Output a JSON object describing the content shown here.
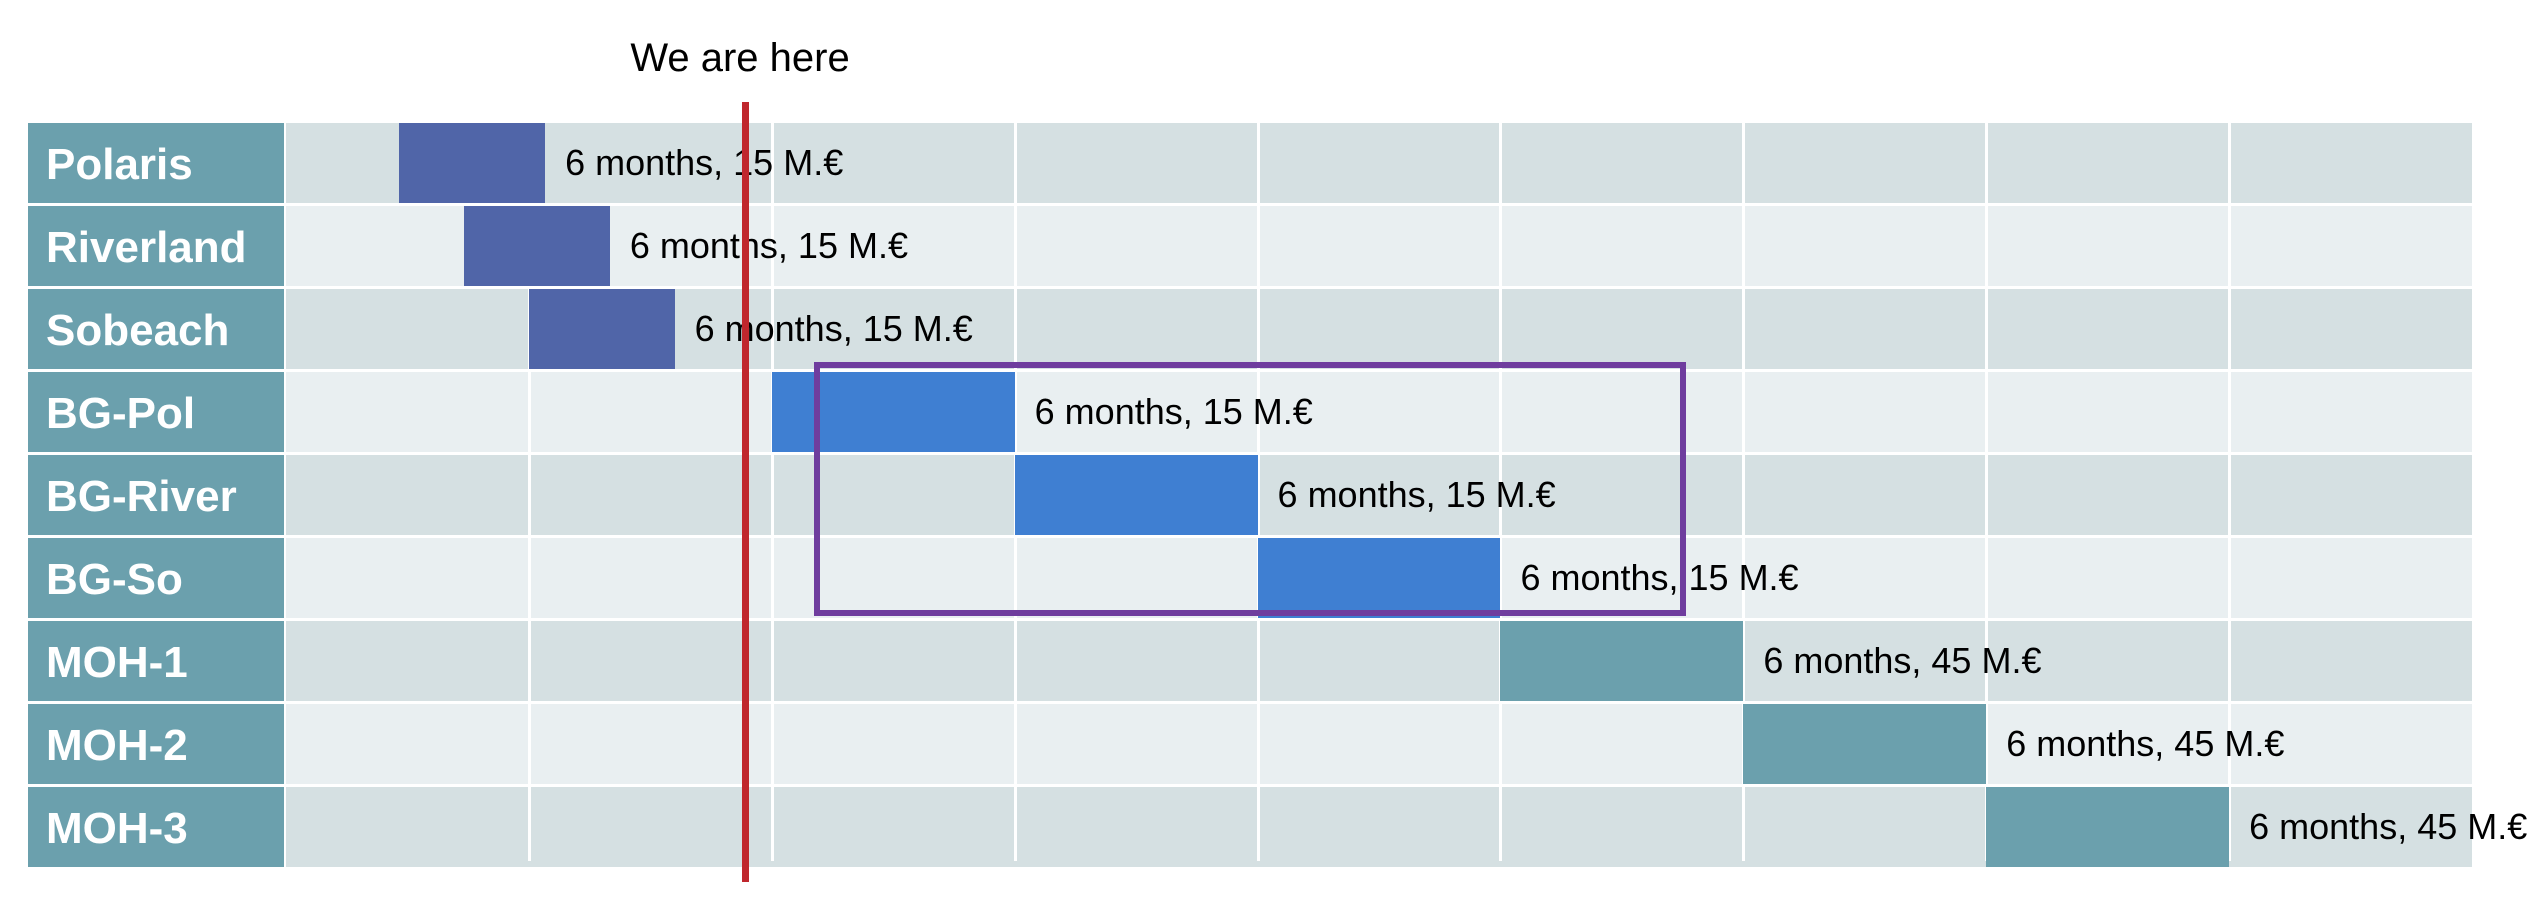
{
  "chart_data": {
    "type": "gantt",
    "x_axis": {
      "unit": "months",
      "range": [
        0,
        13.5
      ],
      "tick_interval_months": 1.5
    },
    "marker": {
      "label": "We are here",
      "x": 2.8,
      "color": "#c0272d"
    },
    "highlight_group": [
      "BG-Pol",
      "BG-River",
      "BG-So"
    ],
    "highlight_color": "#6f3d9e",
    "tasks": [
      {
        "name": "Polaris",
        "start": 0.7,
        "duration": 0.9,
        "label": "6 months, 15 M.€",
        "color": "#5065a8"
      },
      {
        "name": "Riverland",
        "start": 1.1,
        "duration": 0.9,
        "label": "6 months, 15 M.€",
        "color": "#5065a8"
      },
      {
        "name": "Sobeach",
        "start": 1.5,
        "duration": 0.9,
        "label": "6 months, 15 M.€",
        "color": "#5065a8"
      },
      {
        "name": "BG-Pol",
        "start": 3.0,
        "duration": 1.5,
        "label": "6 months, 15 M.€",
        "color": "#3f7fd2"
      },
      {
        "name": "BG-River",
        "start": 4.5,
        "duration": 1.5,
        "label": "6 months, 15 M.€",
        "color": "#3f7fd2"
      },
      {
        "name": "BG-So",
        "start": 6.0,
        "duration": 1.5,
        "label": "6 months, 15 M.€",
        "color": "#3f7fd2"
      },
      {
        "name": "MOH-1",
        "start": 7.5,
        "duration": 1.5,
        "label": "6 months, 45 M.€",
        "color": "#6ba0ad"
      },
      {
        "name": "MOH-2",
        "start": 9.0,
        "duration": 1.5,
        "label": "6 months, 45 M.€",
        "color": "#6ba0ad"
      },
      {
        "name": "MOH-3",
        "start": 10.5,
        "duration": 1.5,
        "label": "6 months, 45 M.€",
        "color": "#6ba0ad"
      }
    ]
  }
}
